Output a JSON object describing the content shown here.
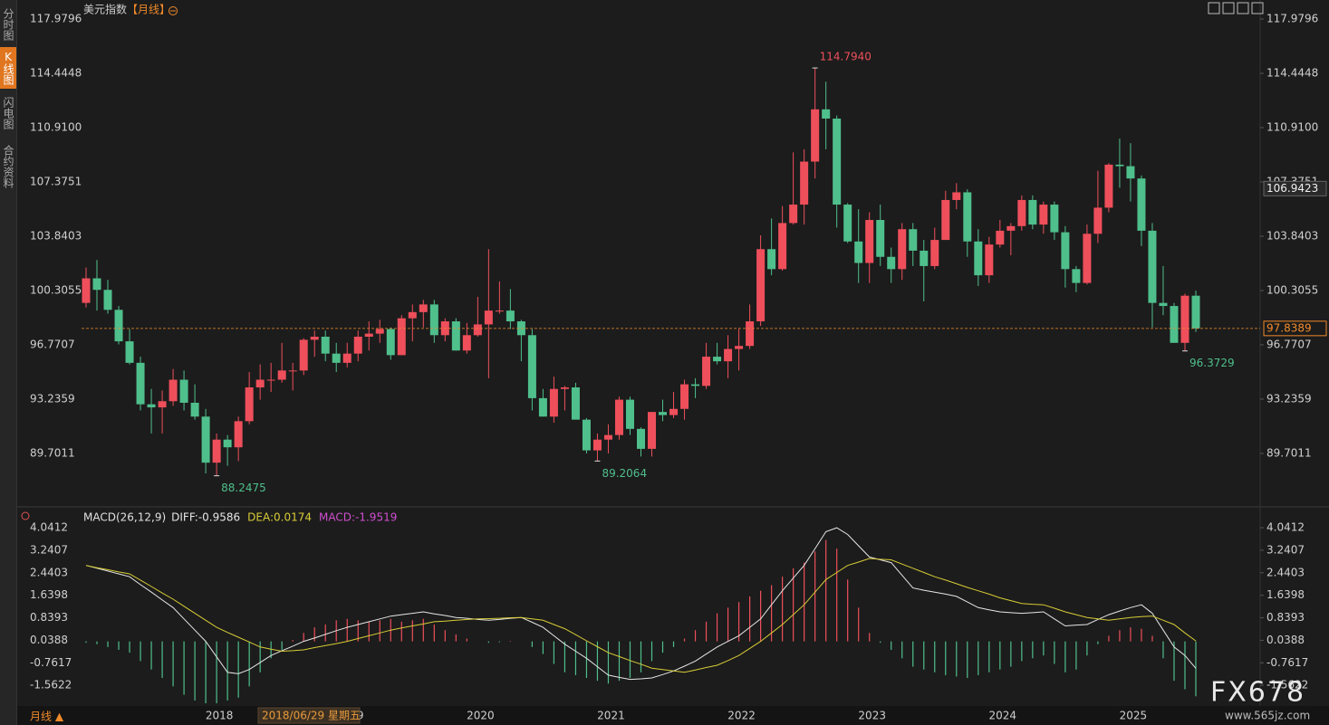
{
  "app": {
    "tabs": [
      "分时图",
      "K线图",
      "闪电图",
      "合约资料"
    ],
    "period_button": "月线 ▲",
    "cursor_date": "2018/06/29 星期五",
    "watermark": "FX678",
    "watermark_url": "www.565jz.com"
  },
  "chart_data": [
    {
      "type": "candlestick",
      "title": "美元指数",
      "period": "【月线】",
      "categories": [
        null,
        null,
        null,
        null,
        null,
        null,
        null,
        null,
        null,
        null,
        null,
        "2018",
        null,
        null,
        null,
        null,
        null,
        null,
        null,
        null,
        null,
        null,
        null,
        "2019",
        null,
        null,
        null,
        null,
        null,
        null,
        null,
        null,
        null,
        null,
        null,
        "2020",
        null,
        null,
        null,
        null,
        null,
        null,
        null,
        null,
        null,
        null,
        null,
        "2021",
        null,
        null,
        null,
        null,
        null,
        null,
        null,
        null,
        null,
        null,
        null,
        "2022",
        null,
        null,
        null,
        null,
        null,
        null,
        null,
        null,
        null,
        null,
        null,
        "2023",
        null,
        null,
        null,
        null,
        null,
        null,
        null,
        null,
        null,
        null,
        null,
        "2024",
        null,
        null,
        null,
        null,
        null,
        null,
        null,
        null,
        null,
        null,
        null,
        "2025",
        null,
        null,
        null,
        null,
        null,
        null,
        null
      ],
      "open": [
        99.5,
        101.1,
        100.35,
        99.05,
        97.0,
        95.6,
        92.9,
        92.7,
        93.1,
        94.5,
        93.0,
        92.1,
        89.1,
        90.6,
        90.1,
        91.8,
        94.0,
        94.5,
        94.5,
        95.1,
        95.1,
        97.1,
        97.3,
        96.2,
        95.6,
        96.2,
        97.3,
        97.5,
        97.8,
        96.1,
        98.5,
        98.9,
        99.4,
        97.4,
        98.3,
        96.4,
        97.4,
        98.1,
        99.0,
        99.0,
        98.3,
        97.4,
        93.3,
        92.1,
        93.9,
        94.0,
        91.9,
        89.9,
        90.6,
        90.9,
        93.2,
        91.3,
        90.0,
        92.4,
        92.2,
        92.6,
        94.2,
        94.1,
        96.0,
        95.7,
        96.5,
        96.7,
        98.3,
        103.0,
        101.7,
        104.7,
        105.9,
        108.7,
        112.1,
        111.5,
        105.9,
        103.5,
        102.1,
        104.9,
        102.5,
        101.7,
        104.3,
        102.9,
        101.9,
        103.6,
        106.2,
        106.7,
        103.5,
        101.3,
        103.3,
        104.2,
        104.5,
        106.2,
        104.6,
        105.9,
        104.1,
        101.7,
        100.8,
        104.0,
        105.7,
        108.5,
        108.4,
        107.6,
        104.2,
        99.5,
        99.3,
        96.9,
        99.97
      ],
      "high": [
        101.8,
        102.3,
        101.0,
        99.3,
        97.8,
        96.0,
        93.9,
        93.8,
        95.2,
        95.1,
        94.2,
        92.6,
        91.0,
        90.9,
        92.1,
        95.0,
        95.5,
        95.6,
        96.9,
        95.6,
        97.2,
        97.7,
        97.7,
        96.9,
        96.9,
        97.7,
        98.3,
        98.4,
        97.9,
        98.7,
        99.4,
        99.7,
        99.7,
        98.5,
        98.5,
        98.2,
        99.9,
        103.0,
        100.9,
        100.4,
        98.4,
        97.8,
        93.9,
        94.7,
        94.1,
        94.3,
        92.0,
        91.0,
        91.6,
        93.4,
        93.4,
        91.4,
        92.4,
        93.2,
        93.7,
        94.5,
        94.6,
        96.9,
        96.9,
        97.4,
        97.8,
        99.4,
        103.9,
        105.0,
        105.8,
        109.3,
        109.5,
        114.794,
        113.9,
        111.7,
        106.0,
        105.6,
        105.4,
        105.9,
        103.1,
        104.7,
        104.7,
        103.6,
        104.4,
        106.8,
        107.3,
        106.9,
        104.3,
        103.8,
        104.9,
        104.7,
        106.5,
        106.5,
        106.1,
        106.1,
        104.5,
        101.9,
        104.6,
        108.1,
        108.6,
        110.2,
        109.9,
        107.8,
        104.7,
        101.9,
        99.5,
        100.1,
        100.3
      ],
      "low": [
        99.2,
        99.0,
        98.8,
        96.8,
        95.5,
        92.5,
        91.0,
        91.0,
        92.8,
        92.5,
        91.9,
        88.4,
        88.2475,
        88.9,
        89.2,
        91.6,
        93.2,
        93.7,
        94.3,
        93.8,
        94.8,
        96.0,
        95.7,
        95.0,
        95.3,
        95.7,
        96.4,
        96.9,
        95.8,
        96.1,
        97.0,
        97.9,
        96.9,
        97.0,
        96.4,
        96.2,
        97.3,
        94.6,
        98.8,
        97.8,
        95.7,
        92.5,
        92.1,
        91.7,
        92.5,
        91.9,
        89.7,
        89.2064,
        89.7,
        90.6,
        90.9,
        89.5,
        89.5,
        91.8,
        92.0,
        91.9,
        93.3,
        93.9,
        95.5,
        94.6,
        95.1,
        96.5,
        98.0,
        101.3,
        101.6,
        104.6,
        104.6,
        107.6,
        109.5,
        104.4,
        103.4,
        100.8,
        100.8,
        101.9,
        100.8,
        101.0,
        101.9,
        99.6,
        101.7,
        103.6,
        105.6,
        102.5,
        100.6,
        100.8,
        103.1,
        102.6,
        104.2,
        104.3,
        104.0,
        103.6,
        100.5,
        100.2,
        100.7,
        103.4,
        105.4,
        107.0,
        106.1,
        103.2,
        97.9,
        98.7,
        96.9,
        96.3729,
        97.6
      ],
      "close": [
        101.1,
        100.35,
        99.05,
        97.0,
        95.6,
        92.9,
        92.7,
        93.1,
        94.5,
        93.0,
        92.1,
        89.1,
        90.6,
        90.1,
        91.8,
        94.0,
        94.5,
        94.5,
        95.1,
        95.1,
        97.1,
        97.3,
        96.2,
        95.6,
        96.2,
        97.3,
        97.5,
        97.8,
        96.1,
        98.5,
        98.9,
        99.4,
        97.4,
        98.3,
        96.4,
        97.4,
        98.1,
        99.0,
        99.0,
        98.3,
        97.4,
        93.3,
        92.1,
        93.9,
        94.0,
        91.9,
        89.9,
        90.6,
        90.9,
        93.2,
        91.3,
        90.0,
        92.4,
        92.2,
        92.6,
        94.2,
        94.1,
        96.0,
        95.7,
        96.5,
        96.7,
        98.3,
        103.0,
        101.7,
        104.7,
        105.9,
        108.7,
        112.1,
        111.5,
        105.9,
        103.5,
        102.1,
        104.9,
        102.5,
        101.7,
        104.3,
        102.9,
        101.9,
        103.6,
        106.2,
        106.7,
        103.5,
        101.3,
        103.3,
        104.2,
        104.5,
        106.2,
        104.6,
        105.9,
        104.1,
        101.7,
        100.8,
        104.0,
        105.7,
        108.5,
        108.4,
        107.6,
        104.2,
        99.5,
        99.3,
        96.9,
        99.97,
        97.8389
      ],
      "up_color": "#ee4f5b",
      "down_color": "#4fbf8c",
      "ylim": [
        86.5,
        118.6
      ],
      "yticks": [
        89.7011,
        93.2359,
        96.7707,
        100.3055,
        103.8403,
        107.3751,
        {
          "value": 110.91,
          "label": "110.9100"
        },
        114.4448,
        117.9796
      ],
      "annotations": [
        {
          "value": 114.794,
          "label": "114.7940"
        },
        {
          "value": 88.2475,
          "label": "88.2475"
        },
        {
          "value": 89.2064,
          "label": "89.2064"
        },
        {
          "value": 96.3729,
          "label": "96.3729"
        }
      ],
      "last_price": 97.8389,
      "last_price_color": "#f08a2a",
      "cursor_price": 106.9423,
      "grid": false
    },
    {
      "type": "macd",
      "title": "MACD(26,12,9)",
      "up_color": "#ee4f5b",
      "down_color": "#4fbf8c",
      "series": [
        {
          "name": "DIFF:-0.9586",
          "color": "#e6e6e6",
          "values": [
            2.7,
            2.6,
            2.5,
            2.4,
            2.3,
            2.02,
            1.75,
            1.47,
            1.2,
            0.8,
            0.4,
            0.0,
            -0.55,
            -1.1,
            -1.15,
            -1.0,
            -0.75,
            -0.5,
            -0.33,
            -0.17,
            0.0,
            0.12,
            0.25,
            0.38,
            0.5,
            0.6,
            0.7,
            0.8,
            0.9,
            0.95,
            1.0,
            1.05,
            0.98,
            0.92,
            0.85,
            0.82,
            0.78,
            0.75,
            0.78,
            0.82,
            0.85,
            0.68,
            0.5,
            0.2,
            -0.1,
            -0.35,
            -0.6,
            -0.9,
            -1.2,
            -1.28,
            -1.35,
            -1.33,
            -1.3,
            -1.18,
            -1.05,
            -0.88,
            -0.7,
            -0.45,
            -0.2,
            0.0,
            0.2,
            0.5,
            0.8,
            1.3,
            1.8,
            2.25,
            2.7,
            3.3,
            3.9,
            4.04,
            3.8,
            3.4,
            3.0,
            2.9,
            2.8,
            2.35,
            1.9,
            1.82,
            1.75,
            1.68,
            1.6,
            1.4,
            1.2,
            1.12,
            1.05,
            1.02,
            1.0,
            1.02,
            1.05,
            0.8,
            0.55,
            0.58,
            0.6,
            0.78,
            0.95,
            1.08,
            1.2,
            1.3,
            1.0,
            0.4,
            -0.2,
            -0.5,
            -0.9586
          ]
        },
        {
          "name": "DEA:0.0174",
          "color": "#d8cc36",
          "values": [
            2.7,
            2.62,
            2.55,
            2.47,
            2.4,
            2.18,
            1.95,
            1.72,
            1.5,
            1.25,
            1.0,
            0.75,
            0.5,
            0.32,
            0.15,
            -0.02,
            -0.2,
            -0.28,
            -0.35,
            -0.33,
            -0.3,
            -0.22,
            -0.15,
            -0.08,
            0.0,
            0.1,
            0.2,
            0.3,
            0.4,
            0.48,
            0.55,
            0.62,
            0.7,
            0.72,
            0.75,
            0.78,
            0.8,
            0.81,
            0.82,
            0.84,
            0.85,
            0.8,
            0.75,
            0.6,
            0.45,
            0.24,
            0.02,
            -0.19,
            -0.4,
            -0.54,
            -0.68,
            -0.81,
            -0.95,
            -1.0,
            -1.05,
            -1.1,
            -1.02,
            -0.93,
            -0.85,
            -0.68,
            -0.5,
            -0.25,
            0.0,
            0.3,
            0.6,
            0.95,
            1.3,
            1.75,
            2.2,
            2.45,
            2.7,
            2.82,
            2.95,
            2.92,
            2.9,
            2.75,
            2.6,
            2.45,
            2.3,
            2.18,
            2.05,
            1.92,
            1.8,
            1.68,
            1.55,
            1.45,
            1.35,
            1.32,
            1.3,
            1.18,
            1.05,
            0.95,
            0.85,
            0.8,
            0.75,
            0.8,
            0.85,
            0.88,
            0.9,
            0.75,
            0.6,
            0.3,
            0.0174
          ]
        },
        {
          "name": "MACD:-1.9519",
          "color": "#d04fd0",
          "values": [
            -0.05,
            -0.1,
            -0.2,
            -0.3,
            -0.4,
            -0.7,
            -1.0,
            -1.3,
            -1.6,
            -1.9,
            -2.1,
            -2.2,
            -2.2,
            -2.1,
            -2.0,
            -1.6,
            -1.1,
            -0.6,
            -0.3,
            0.05,
            0.3,
            0.5,
            0.6,
            0.75,
            0.8,
            0.75,
            0.7,
            0.75,
            0.8,
            0.7,
            0.75,
            0.8,
            0.6,
            0.4,
            0.25,
            0.1,
            0.0,
            -0.05,
            -0.03,
            0.02,
            0.0,
            -0.2,
            -0.45,
            -0.8,
            -1.1,
            -1.2,
            -1.3,
            -1.4,
            -1.5,
            -1.4,
            -1.3,
            -1.1,
            -0.7,
            -0.4,
            -0.2,
            0.1,
            0.4,
            0.7,
            1.0,
            1.2,
            1.4,
            1.6,
            1.8,
            2.0,
            2.3,
            2.6,
            2.8,
            3.2,
            3.6,
            3.3,
            2.2,
            1.2,
            0.3,
            -0.05,
            -0.3,
            -0.6,
            -0.9,
            -1.0,
            -1.1,
            -1.2,
            -1.25,
            -1.3,
            -1.2,
            -1.1,
            -1.0,
            -0.9,
            -0.7,
            -0.6,
            -0.5,
            -0.8,
            -1.1,
            -1.0,
            -0.5,
            -0.1,
            0.2,
            0.4,
            0.5,
            0.45,
            0.2,
            -0.6,
            -1.4,
            -1.7,
            -1.9519
          ]
        }
      ],
      "ylim": [
        -2.2,
        4.3
      ],
      "yticks": [
        4.0412,
        3.2407,
        2.4403,
        1.6398,
        0.8393,
        0.0388,
        -0.7617,
        -1.5622
      ]
    }
  ]
}
